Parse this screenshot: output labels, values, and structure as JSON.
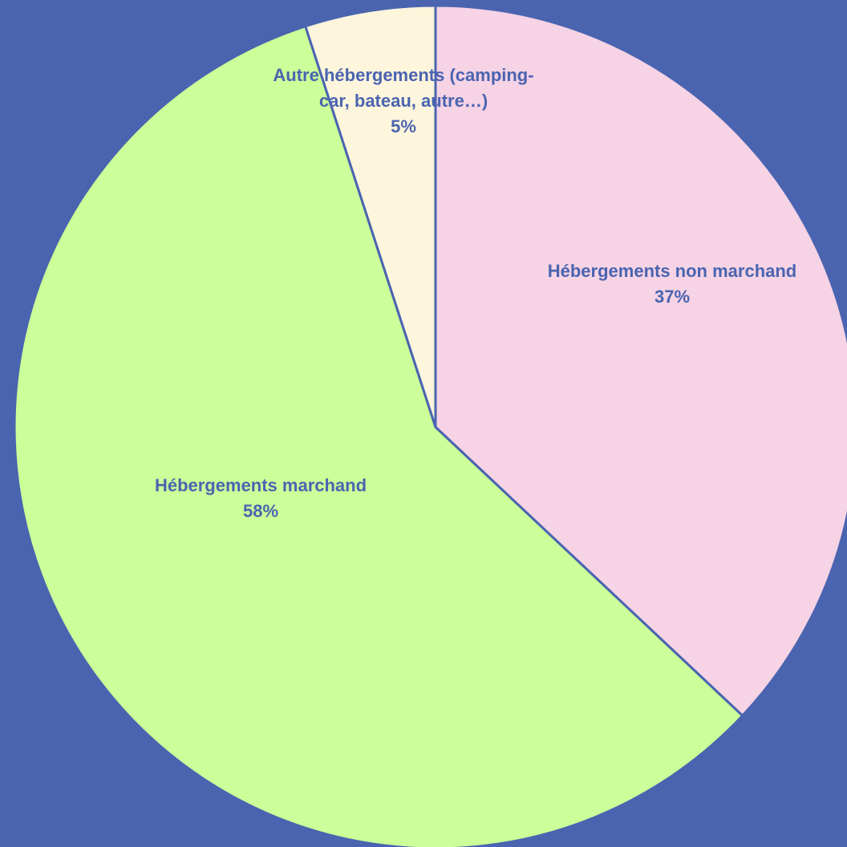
{
  "chart_data": {
    "type": "pie",
    "categories": [
      "Hébergements non marchand",
      "Hébergements marchand",
      "Autre hébergements (camping-car, bateau, autre…)"
    ],
    "values": [
      37,
      58,
      5
    ],
    "value_labels": [
      "37%",
      "58%",
      "5%"
    ],
    "colors": [
      "#f6d3e5",
      "#ccff99",
      "#fdf5dc"
    ],
    "background": "#4a64b0"
  }
}
